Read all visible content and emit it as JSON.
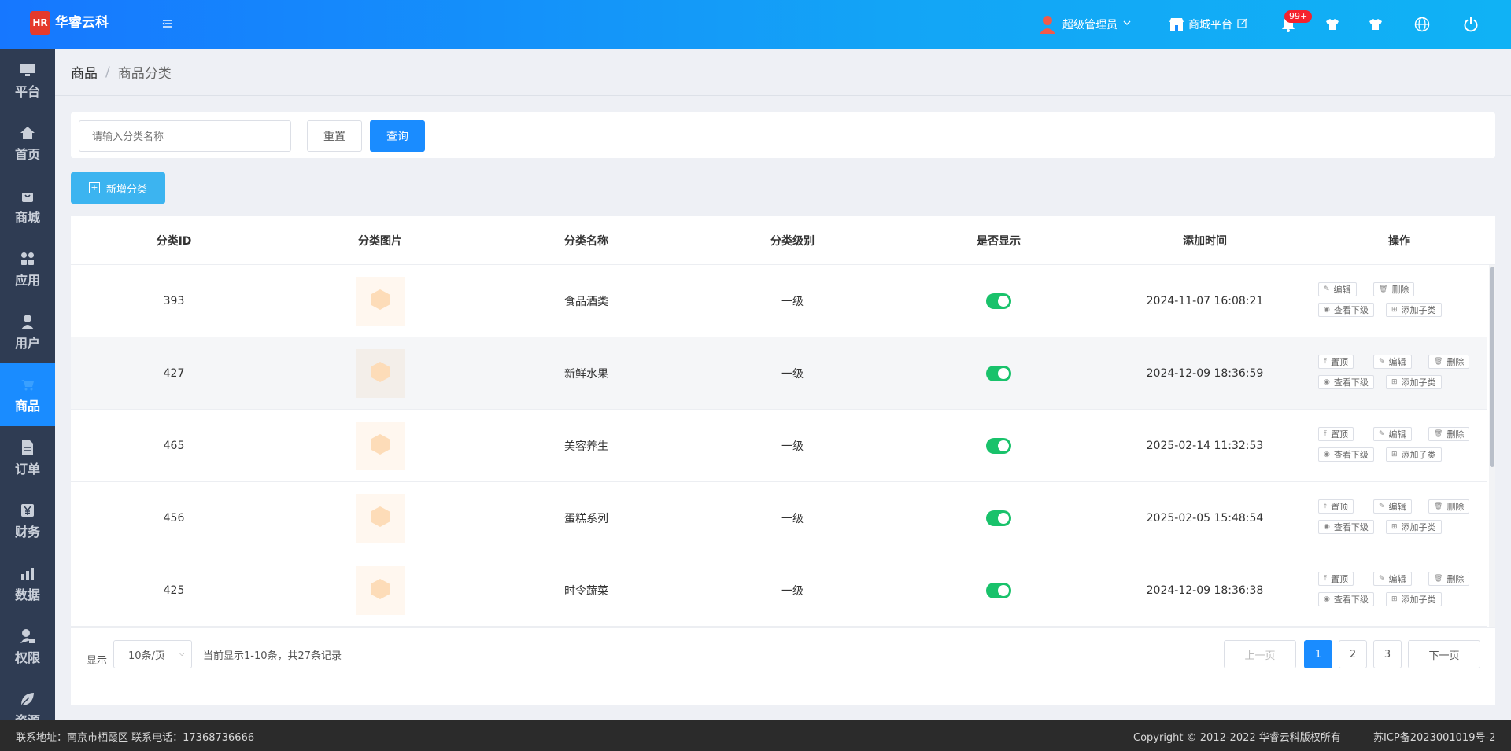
{
  "brand": {
    "name": "华睿云科",
    "logo_mark": "HR"
  },
  "header": {
    "user": "超级管理员",
    "platform": "商城平台",
    "notification_badge": "99+"
  },
  "sidebar": {
    "items": [
      {
        "label": "平台",
        "icon": "monitor-icon"
      },
      {
        "label": "首页",
        "icon": "home-icon"
      },
      {
        "label": "商城",
        "icon": "bag-icon"
      },
      {
        "label": "应用",
        "icon": "apps-icon"
      },
      {
        "label": "用户",
        "icon": "user-icon"
      },
      {
        "label": "商品",
        "icon": "cart-icon",
        "active": true
      },
      {
        "label": "订单",
        "icon": "document-icon"
      },
      {
        "label": "财务",
        "icon": "yen-icon"
      },
      {
        "label": "数据",
        "icon": "bar-chart-icon"
      },
      {
        "label": "权限",
        "icon": "lock-user-icon"
      },
      {
        "label": "资源",
        "icon": "leaf-icon"
      }
    ]
  },
  "breadcrumb": {
    "parent": "商品",
    "separator": "/",
    "current": "商品分类"
  },
  "search": {
    "placeholder": "请输入分类名称",
    "reset_label": "重置",
    "query_label": "查询"
  },
  "add_button_label": "新增分类",
  "table": {
    "columns": [
      "分类ID",
      "分类图片",
      "分类名称",
      "分类级别",
      "是否显示",
      "添加时间",
      "操作"
    ],
    "rows": [
      {
        "id": "393",
        "name": "食品酒类",
        "level": "一级",
        "visible": true,
        "time": "2024-11-07 16:08:21",
        "pinned": true
      },
      {
        "id": "427",
        "name": "新鲜水果",
        "level": "一级",
        "visible": true,
        "time": "2024-12-09 18:36:59",
        "pinned": false
      },
      {
        "id": "465",
        "name": "美容养生",
        "level": "一级",
        "visible": true,
        "time": "2025-02-14 11:32:53",
        "pinned": false
      },
      {
        "id": "456",
        "name": "蛋糕系列",
        "level": "一级",
        "visible": true,
        "time": "2025-02-05 15:48:54",
        "pinned": false
      },
      {
        "id": "425",
        "name": "时令蔬菜",
        "level": "一级",
        "visible": true,
        "time": "2024-12-09 18:36:38",
        "pinned": false
      }
    ],
    "actions": {
      "top": "置顶",
      "edit": "编辑",
      "delete": "删除",
      "children": "查看下级",
      "add_child": "添加子类"
    }
  },
  "pagination": {
    "show_label": "显示",
    "page_size": "10条/页",
    "info": "当前显示1-10条，共27条记录",
    "prev": "上一页",
    "next": "下一页",
    "pages": [
      "1",
      "2",
      "3"
    ],
    "current_page": "1"
  },
  "footer": {
    "contact": "联系地址：南京市栖霞区 联系电话：17368736666",
    "copyright": "Copyright © 2012-2022 华睿云科版权所有",
    "icp": "苏ICP备2023001019号-2"
  },
  "colors": {
    "header": "#1677ff",
    "sidebar": "#2f3c53",
    "accent": "#1a8cff",
    "toggle_on": "#19c26b"
  }
}
